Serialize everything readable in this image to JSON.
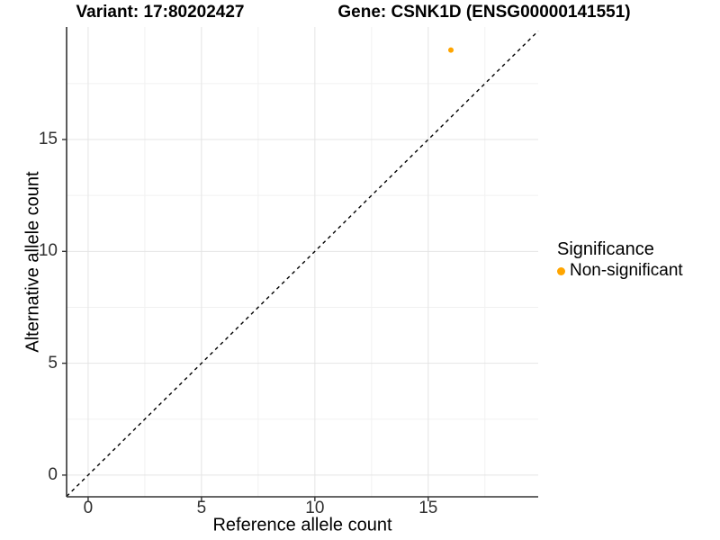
{
  "titles": {
    "variant": "Variant: 17:80202427",
    "gene": "Gene: CSNK1D (ENSG00000141551)"
  },
  "chart_data": {
    "type": "scatter",
    "xlabel": "Reference allele count",
    "ylabel": "Alternative allele count",
    "xlim": [
      -0.95,
      19.85
    ],
    "ylim": [
      -0.97,
      20.03
    ],
    "xticks": [
      0,
      5,
      10,
      15
    ],
    "yticks": [
      0,
      5,
      10,
      15
    ],
    "minor_xticks": [
      2.5,
      7.5,
      12.5,
      17.5
    ],
    "minor_yticks": [
      2.5,
      7.5,
      12.5,
      17.5
    ],
    "grid": true,
    "series": [
      {
        "name": "Non-significant",
        "color": "#FFA500",
        "points": [
          {
            "x": 16,
            "y": 19
          }
        ]
      }
    ],
    "reference_line": {
      "type": "identity",
      "style": "dashed",
      "color": "#000000"
    },
    "point_radius": 3,
    "colors": {
      "grid_major": "#E4E4E4",
      "grid_minor": "#F1F1F1",
      "axis_line": "#333333",
      "tick_mark": "#333333",
      "tick_label": "#303030"
    }
  },
  "legend": {
    "title": "Significance",
    "position": "right",
    "items": [
      {
        "label": "Non-significant",
        "color": "#FFA500"
      }
    ]
  }
}
